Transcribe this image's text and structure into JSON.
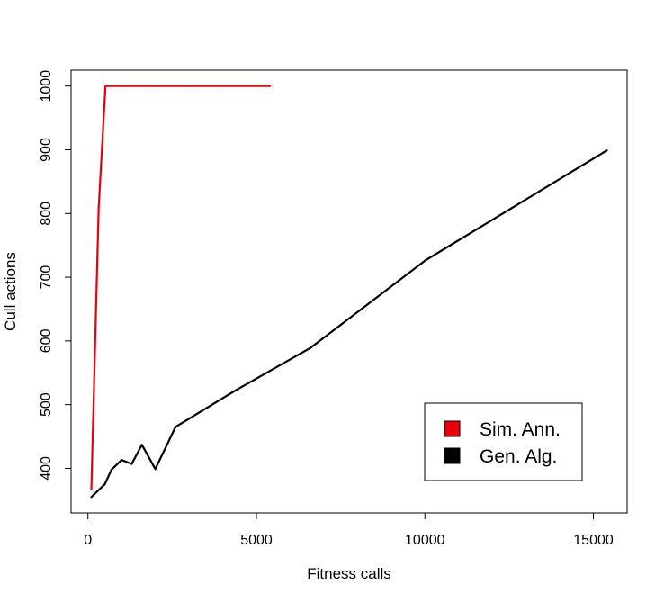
{
  "chart_data": {
    "type": "line",
    "title": "",
    "xlabel": "Fitness calls",
    "ylabel": "Cull actions",
    "xlim": [
      -500,
      16000
    ],
    "ylim": [
      330,
      1025
    ],
    "xticks": [
      0,
      5000,
      10000,
      15000
    ],
    "xtick_labels": [
      "0",
      "5000",
      "10000",
      "15000"
    ],
    "yticks": [
      400,
      500,
      600,
      700,
      800,
      900,
      1000
    ],
    "ytick_labels": [
      "400",
      "500",
      "600",
      "700",
      "800",
      "900",
      "1000"
    ],
    "grid": false,
    "legend_position": "bottom-right",
    "series": [
      {
        "name": "Sim. Ann.",
        "color": "#e8000b",
        "x": [
          100,
          320,
          520,
          1000,
          2000,
          3000,
          4000,
          5400
        ],
        "y": [
          367,
          810,
          1000,
          1000,
          1000,
          1000,
          1000,
          1000
        ]
      },
      {
        "name": "Gen. Alg.",
        "color": "#000000",
        "x": [
          100,
          500,
          700,
          1000,
          1300,
          1600,
          2000,
          2600,
          4400,
          6600,
          10000,
          15400
        ],
        "y": [
          355,
          375,
          398,
          413,
          407,
          437,
          399,
          465,
          523,
          589,
          726,
          899
        ]
      }
    ]
  }
}
